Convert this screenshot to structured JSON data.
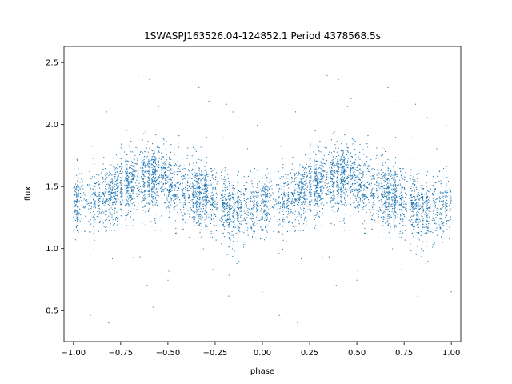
{
  "chart_data": {
    "type": "scatter",
    "title": "1SWASPJ163526.04-124852.1 Period 4378568.5s",
    "xlabel": "phase",
    "ylabel": "flux",
    "xlim": [
      -1.05,
      1.05
    ],
    "ylim": [
      0.25,
      2.63
    ],
    "xticks": [
      -1.0,
      -0.75,
      -0.5,
      -0.25,
      0.0,
      0.25,
      0.5,
      0.75,
      1.0
    ],
    "xtick_labels": [
      "−1.00",
      "−0.75",
      "−0.50",
      "−0.25",
      "0.00",
      "0.25",
      "0.50",
      "0.75",
      "1.00"
    ],
    "yticks": [
      0.5,
      1.0,
      1.5,
      2.0,
      2.5
    ],
    "ytick_labels": [
      "0.5",
      "1.0",
      "1.5",
      "2.0",
      "2.5"
    ],
    "grid": false,
    "marker_color": "#1f77b4",
    "phase_range": [
      -1.0,
      1.0
    ],
    "flux_profile": {
      "phase": [
        0.0,
        0.05,
        0.1,
        0.15,
        0.2,
        0.25,
        0.3,
        0.35,
        0.4,
        0.45,
        0.5,
        0.55,
        0.6,
        0.65,
        0.7,
        0.75,
        0.8,
        0.85,
        0.9,
        0.95,
        1.0
      ],
      "median_flux": [
        1.38,
        1.36,
        1.37,
        1.39,
        1.44,
        1.5,
        1.52,
        1.54,
        1.56,
        1.57,
        1.52,
        1.49,
        1.46,
        1.44,
        1.42,
        1.38,
        1.33,
        1.3,
        1.33,
        1.36,
        1.38
      ]
    },
    "series": [
      {
        "values_description_only": false,
        "point_count_approx": 6000
      }
    ]
  }
}
